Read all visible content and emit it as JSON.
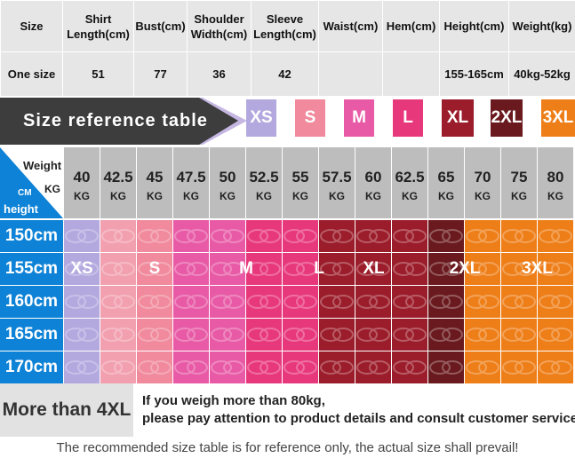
{
  "measurement_table": {
    "headers": [
      "Size",
      "Shirt Length(cm)",
      "Bust(cm)",
      "Shoulder Width(cm)",
      "Sleeve Length(cm)",
      "Waist(cm)",
      "Hem(cm)",
      "Height(cm)",
      "Weight(kg)"
    ],
    "row": [
      "One size",
      "51",
      "77",
      "36",
      "42",
      "",
      "",
      "155-165cm",
      "40kg-52kg"
    ]
  },
  "banner": {
    "title": "Size reference table",
    "sizes": [
      {
        "label": "XS",
        "color": "#b3a9df"
      },
      {
        "label": "S",
        "color": "#f08a9c"
      },
      {
        "label": "M",
        "color": "#e85aa6"
      },
      {
        "label": "L",
        "color": "#e8387c"
      },
      {
        "label": "XL",
        "color": "#9b1c2a"
      },
      {
        "label": "2XL",
        "color": "#6a1a1e"
      },
      {
        "label": "3XL",
        "color": "#ee7e18"
      }
    ]
  },
  "grid": {
    "weight_label": "Weight",
    "kg_label": "KG",
    "cm_label": "CM",
    "height_label": "height",
    "weights": [
      "40",
      "42.5",
      "45",
      "47.5",
      "50",
      "52.5",
      "55",
      "57.5",
      "60",
      "62.5",
      "65",
      "70",
      "75",
      "80"
    ],
    "weight_unit": "KG",
    "heights": [
      "150cm",
      "155cm",
      "160cm",
      "165cm",
      "170cm"
    ],
    "column_colors": [
      "#b3a9df",
      "#f2a0b0",
      "#f08a9c",
      "#e85aa6",
      "#e85aa6",
      "#e8387c",
      "#e8387c",
      "#9b1c2a",
      "#9b1c2a",
      "#9b1c2a",
      "#6a1a1e",
      "#ee7e18",
      "#ee7e18",
      "#ee7e18"
    ],
    "row_size_labels": [
      "XS",
      "S",
      "M",
      "L",
      "XL",
      "2XL",
      "3XL"
    ]
  },
  "footer": {
    "more_label": "More than 4XL",
    "notice_line1": "If you weigh more than 80kg,",
    "notice_line2": "please pay attention to product details and consult customer service!",
    "disclaimer": "The recommended size table is for reference only, the actual size shall prevail!"
  }
}
